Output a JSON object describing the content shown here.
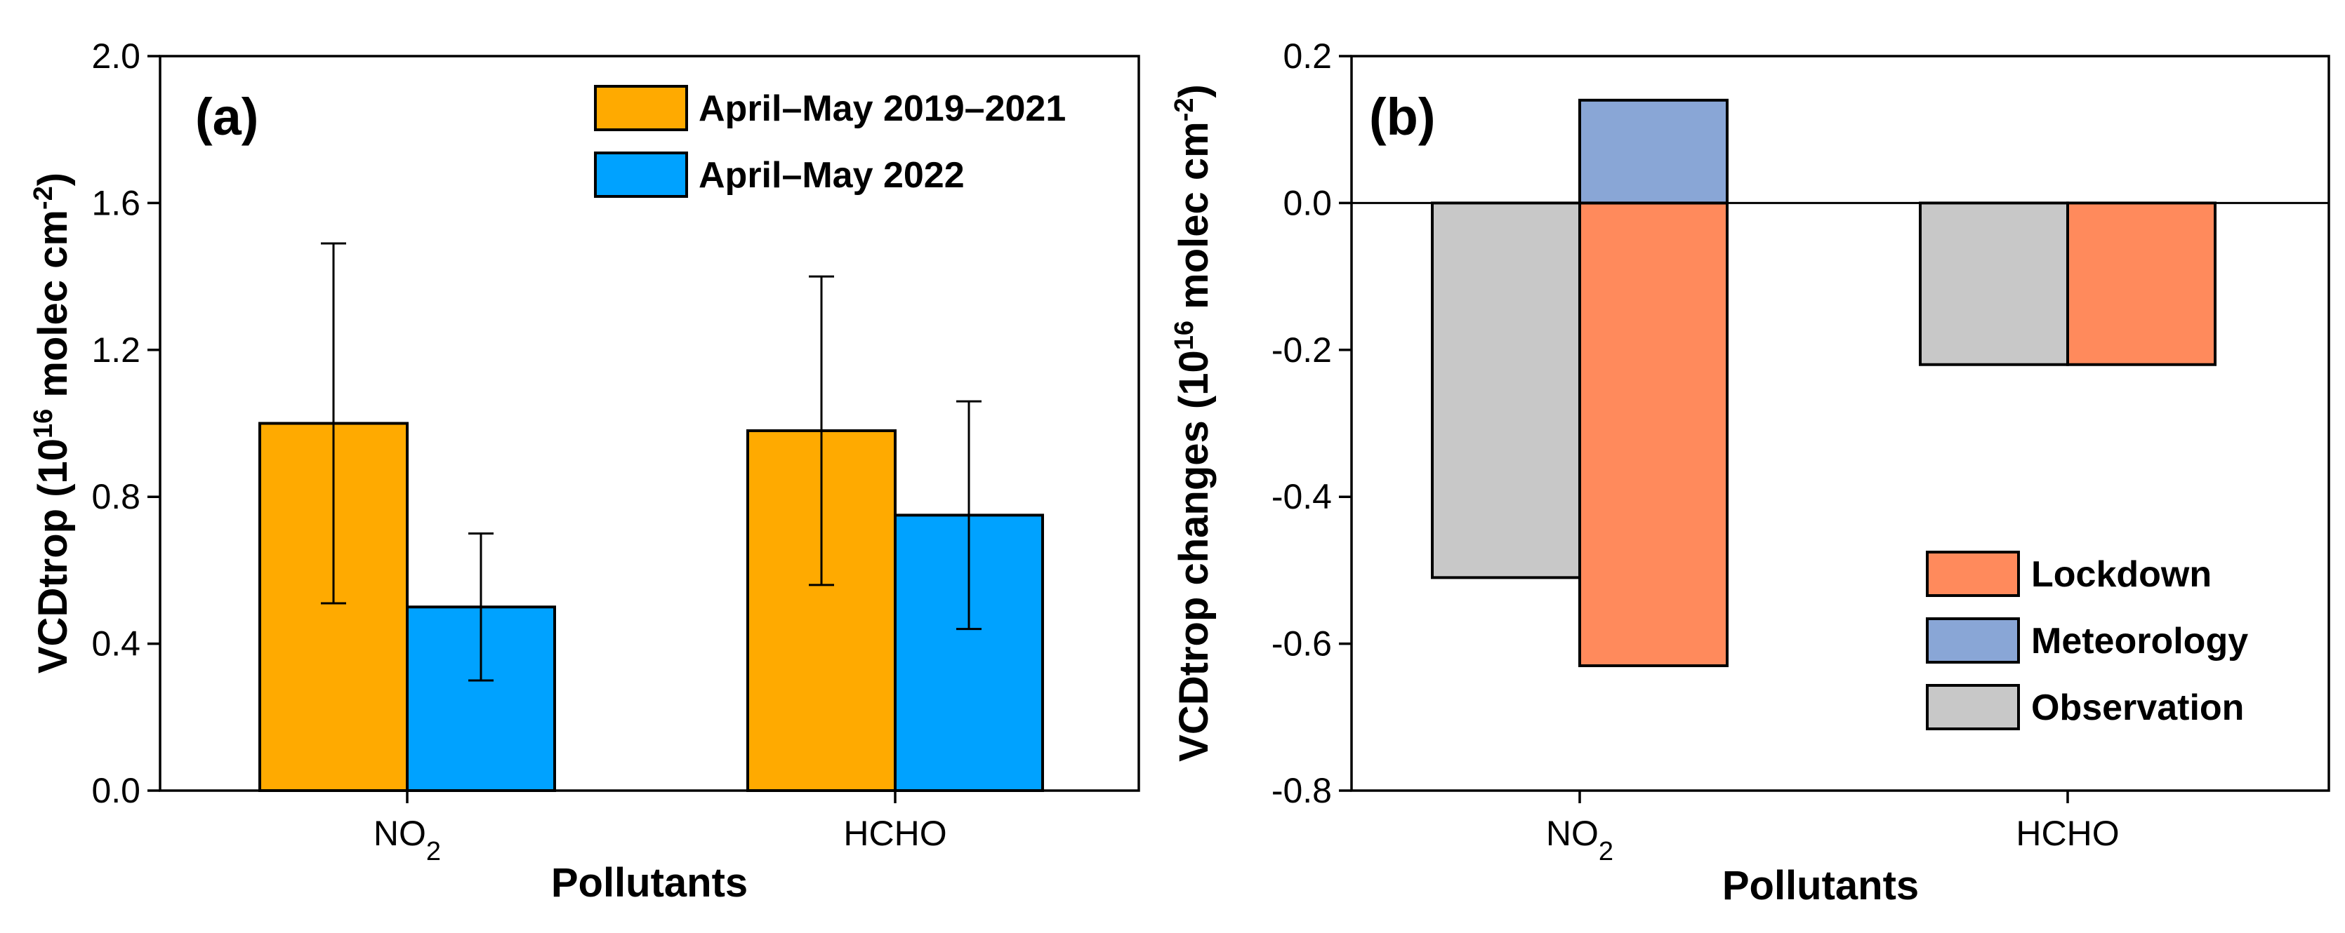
{
  "chart_data": [
    {
      "type": "bar",
      "panel": "(a)",
      "categories": [
        "NO2",
        "HCHO"
      ],
      "category_display": [
        {
          "base": "NO",
          "sub": "2"
        },
        {
          "base": "HCHO",
          "sub": ""
        }
      ],
      "series": [
        {
          "name": "April–May 2019–2021",
          "values": [
            1.0,
            0.98
          ],
          "errors": [
            0.49,
            0.42
          ],
          "color": "#FFAA00"
        },
        {
          "name": "April–May 2022",
          "values": [
            0.5,
            0.75
          ],
          "errors": [
            0.2,
            0.31
          ],
          "color": "#00A2FF"
        }
      ],
      "xlabel": "Pollutants",
      "ylabel": {
        "main": "VCDtrop (10",
        "sup": "16",
        "mid": " molec cm",
        "sup2": "-2",
        "end": ")"
      },
      "ylim": [
        0.0,
        2.0
      ],
      "yticks": [
        "0.0",
        "0.4",
        "0.8",
        "1.2",
        "1.6",
        "2.0"
      ],
      "ytick_values": [
        0.0,
        0.4,
        0.8,
        1.2,
        1.6,
        2.0
      ],
      "legend_position": "top-right"
    },
    {
      "type": "bar",
      "panel": "(b)",
      "categories": [
        "NO2",
        "HCHO"
      ],
      "category_display": [
        {
          "base": "NO",
          "sub": "2"
        },
        {
          "base": "HCHO",
          "sub": ""
        }
      ],
      "series": [
        {
          "name": "Observation",
          "values": [
            -0.51,
            -0.22
          ],
          "color": "#C8C8C8"
        },
        {
          "name": "Lockdown",
          "values": [
            -0.63,
            -0.22
          ],
          "color": "#FF8A5C"
        },
        {
          "name": "Meteorology",
          "values": [
            0.14,
            0.0
          ],
          "color": "#89A6D6"
        }
      ],
      "legend_order": [
        "Lockdown",
        "Meteorology",
        "Observation"
      ],
      "xlabel": "Pollutants",
      "ylabel": {
        "main": "VCDtrop changes (10",
        "sup": "16",
        "mid": " molec cm",
        "sup2": "-2",
        "end": ")"
      },
      "ylim": [
        -0.8,
        0.2
      ],
      "yticks": [
        "0.2",
        "0.0",
        "-0.2",
        "-0.4",
        "-0.6",
        "-0.8"
      ],
      "ytick_values": [
        0.2,
        0.0,
        -0.2,
        -0.4,
        -0.6,
        -0.8
      ],
      "zero_line": true,
      "legend_position": "bottom-right"
    }
  ]
}
